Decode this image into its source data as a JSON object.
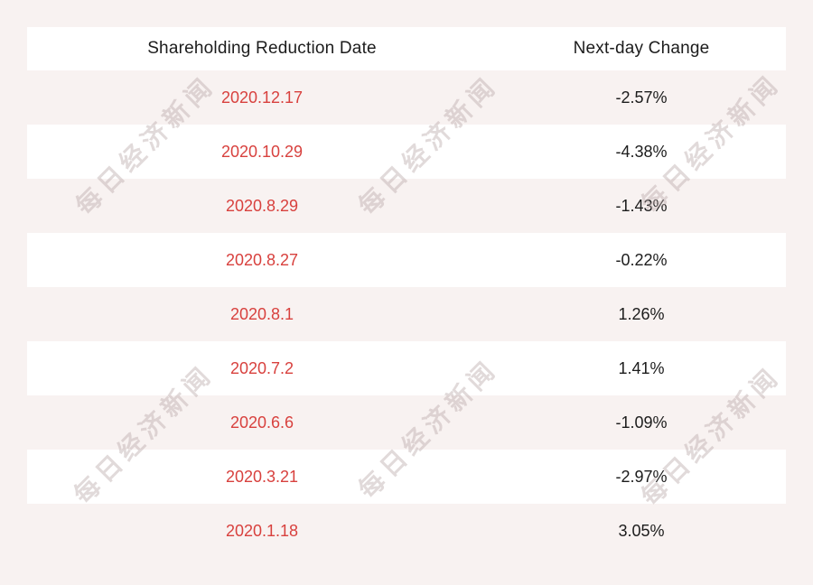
{
  "table": {
    "headers": [
      "Shareholding Reduction Date",
      "Next-day Change"
    ],
    "rows": [
      {
        "date": "2020.12.17",
        "change": "-2.57%"
      },
      {
        "date": "2020.10.29",
        "change": "-4.38%"
      },
      {
        "date": "2020.8.29",
        "change": "-1.43%"
      },
      {
        "date": "2020.8.27",
        "change": "-0.22%"
      },
      {
        "date": "2020.8.1",
        "change": "1.26%"
      },
      {
        "date": "2020.7.2",
        "change": "1.41%"
      },
      {
        "date": "2020.6.6",
        "change": "-1.09%"
      },
      {
        "date": "2020.3.21",
        "change": "-2.97%"
      },
      {
        "date": "2020.1.18",
        "change": "3.05%"
      }
    ]
  },
  "watermark": {
    "text": "每日经济新闻"
  },
  "colors": {
    "page_background": "#f8f2f1",
    "row_band": "#ffffff",
    "date_text": "#d8413e",
    "value_text": "#1c1c1c",
    "watermark_text": "#e4dede"
  },
  "chart_data": {
    "type": "table",
    "title": "",
    "columns": [
      "Shareholding Reduction Date",
      "Next-day Change"
    ],
    "categories": [
      "2020.12.17",
      "2020.10.29",
      "2020.8.29",
      "2020.8.27",
      "2020.8.1",
      "2020.7.2",
      "2020.6.6",
      "2020.3.21",
      "2020.1.18"
    ],
    "values_percent": [
      -2.57,
      -4.38,
      -1.43,
      -0.22,
      1.26,
      1.41,
      -1.09,
      -2.97,
      3.05
    ],
    "layout": {
      "grid": false,
      "alternating_rows": true,
      "legend": "none"
    }
  }
}
